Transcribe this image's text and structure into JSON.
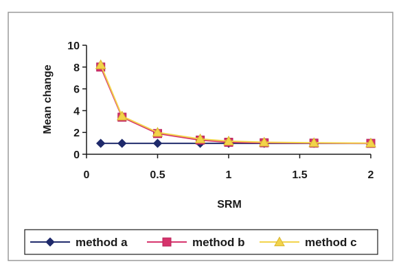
{
  "chart_data": {
    "type": "line",
    "xlabel": "SRM",
    "ylabel": "Mean change",
    "xlim": [
      0,
      2
    ],
    "ylim": [
      0,
      10
    ],
    "xticks": [
      0,
      0.5,
      1,
      1.5,
      2
    ],
    "xtick_labels": [
      "0",
      "0.5",
      "1",
      "1.5",
      "2"
    ],
    "yticks": [
      0,
      2,
      4,
      6,
      8,
      10
    ],
    "ytick_labels": [
      "0",
      "2",
      "4",
      "6",
      "8",
      "10"
    ],
    "grid": false,
    "legend_position": "bottom",
    "series": [
      {
        "name": "method a",
        "color": "#1f2a6b",
        "marker": "diamond",
        "x": [
          0.1,
          0.25,
          0.5,
          0.8,
          1,
          1.25,
          1.6,
          2
        ],
        "y": [
          1,
          1,
          1,
          1,
          1,
          1,
          1,
          1
        ]
      },
      {
        "name": "method b",
        "color": "#d6336c",
        "marker": "square",
        "x": [
          0.1,
          0.25,
          0.5,
          0.8,
          1,
          1.25,
          1.6,
          2
        ],
        "y": [
          8,
          3.4,
          1.9,
          1.3,
          1.1,
          1.05,
          1.02,
          1.0
        ]
      },
      {
        "name": "method c",
        "color": "#f2d34a",
        "marker": "triangle",
        "x": [
          0.1,
          0.25,
          0.5,
          0.8,
          1,
          1.25,
          1.6,
          2
        ],
        "y": [
          8.2,
          3.5,
          2.0,
          1.4,
          1.2,
          1.1,
          1.05,
          1.02
        ]
      }
    ]
  }
}
